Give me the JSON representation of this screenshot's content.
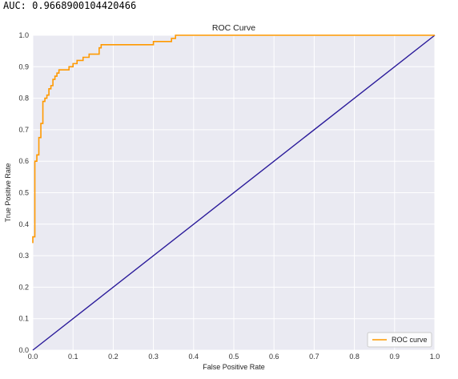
{
  "output": {
    "auc_text": "AUC: 0.9668900104420466"
  },
  "chart_data": {
    "type": "line",
    "title": "ROC Curve",
    "xlabel": "False Positive Rate",
    "ylabel": "True Positive Rate",
    "xlim": [
      0.0,
      1.0
    ],
    "ylim": [
      0.0,
      1.0
    ],
    "xticks": [
      "0.0",
      "0.1",
      "0.2",
      "0.3",
      "0.4",
      "0.5",
      "0.6",
      "0.7",
      "0.8",
      "0.9",
      "1.0"
    ],
    "yticks": [
      "0.0",
      "0.1",
      "0.2",
      "0.3",
      "0.4",
      "0.5",
      "0.6",
      "0.7",
      "0.8",
      "0.9",
      "1.0"
    ],
    "grid": true,
    "legend_position": "lower-right",
    "series": [
      {
        "name": "ROC curve",
        "color": "#ff9900",
        "x": [
          0.0,
          0.0,
          0.005,
          0.005,
          0.01,
          0.01,
          0.015,
          0.015,
          0.02,
          0.02,
          0.025,
          0.025,
          0.03,
          0.03,
          0.035,
          0.035,
          0.04,
          0.04,
          0.045,
          0.045,
          0.05,
          0.05,
          0.055,
          0.055,
          0.06,
          0.06,
          0.065,
          0.065,
          0.075,
          0.075,
          0.09,
          0.09,
          0.1,
          0.1,
          0.11,
          0.11,
          0.125,
          0.125,
          0.14,
          0.14,
          0.165,
          0.165,
          0.17,
          0.17,
          0.195,
          0.195,
          0.3,
          0.3,
          0.345,
          0.345,
          0.355,
          0.355,
          1.0
        ],
        "y": [
          0.34,
          0.36,
          0.36,
          0.6,
          0.6,
          0.62,
          0.62,
          0.675,
          0.675,
          0.72,
          0.72,
          0.79,
          0.79,
          0.8,
          0.8,
          0.81,
          0.81,
          0.83,
          0.83,
          0.84,
          0.84,
          0.86,
          0.86,
          0.87,
          0.87,
          0.88,
          0.88,
          0.89,
          0.89,
          0.89,
          0.89,
          0.9,
          0.9,
          0.91,
          0.91,
          0.92,
          0.92,
          0.93,
          0.93,
          0.94,
          0.94,
          0.96,
          0.96,
          0.97,
          0.97,
          0.97,
          0.97,
          0.98,
          0.98,
          0.99,
          0.99,
          1.0,
          1.0
        ]
      },
      {
        "name": "",
        "color": "#2a1a9a",
        "x": [
          0.0,
          1.0
        ],
        "y": [
          0.0,
          1.0
        ]
      }
    ]
  }
}
